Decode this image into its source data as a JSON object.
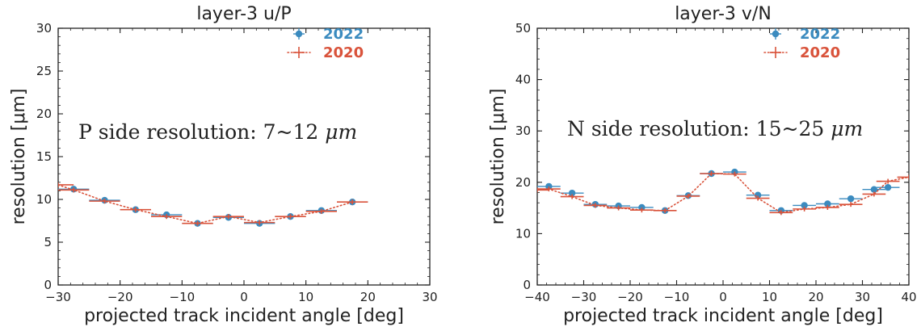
{
  "chart_data": [
    {
      "type": "scatter",
      "title": "layer-3 u/P",
      "xlabel": "projected track incident angle [deg]",
      "ylabel": "resolution [μm]",
      "xlim": [
        -30,
        30
      ],
      "ylim": [
        0,
        30
      ],
      "xticks": [
        -30,
        -20,
        -10,
        0,
        10,
        20,
        30
      ],
      "xtick_labels": [
        "−30",
        "−20",
        "−10",
        "0",
        "10",
        "20",
        "30"
      ],
      "yticks": [
        0,
        5,
        10,
        15,
        20,
        25,
        30
      ],
      "ytick_labels": [
        "0",
        "5",
        "10",
        "15",
        "20",
        "25",
        "30"
      ],
      "grid": false,
      "legend_position": "top-right",
      "annotation": {
        "text": "P side resolution: 7~12 ",
        "unit": "μm"
      },
      "series": [
        {
          "name": "2022",
          "style": "points-with-errorbars",
          "color": "#3b8bbf",
          "x": [
            -27.5,
            -22.5,
            -17.5,
            -12.5,
            -7.5,
            -2.5,
            2.5,
            7.5,
            12.5,
            17.5
          ],
          "y": [
            11.2,
            9.9,
            8.8,
            8.2,
            7.2,
            7.9,
            7.2,
            8.0,
            8.7,
            9.7
          ],
          "xerr": 2.5,
          "yerr": 0.2
        },
        {
          "name": "2020",
          "style": "dotted-line-with-errorbars",
          "color": "#d9533b",
          "x": [
            -30,
            -27.5,
            -22.5,
            -17.5,
            -12.5,
            -7.5,
            -2.5,
            2.5,
            7.5,
            12.5,
            17.5
          ],
          "y": [
            11.7,
            11.1,
            9.8,
            8.8,
            8.0,
            7.2,
            8.0,
            7.3,
            8.0,
            8.6,
            9.7
          ],
          "xerr": 2.5,
          "yerr": 0.15
        }
      ]
    },
    {
      "type": "scatter",
      "title": "layer-3 v/N",
      "xlabel": "projected track incident angle [deg]",
      "ylabel": "resolution [μm]",
      "xlim": [
        -40,
        40
      ],
      "ylim": [
        0,
        50
      ],
      "xticks": [
        -40,
        -30,
        -20,
        -10,
        0,
        10,
        20,
        30,
        40
      ],
      "xtick_labels": [
        "−40",
        "−30",
        "−20",
        "−10",
        "0",
        "10",
        "20",
        "30",
        "40"
      ],
      "yticks": [
        0,
        10,
        20,
        30,
        40,
        50
      ],
      "ytick_labels": [
        "0",
        "10",
        "20",
        "30",
        "40",
        "50"
      ],
      "grid": false,
      "legend_position": "top-right",
      "annotation": {
        "text": "N side resolution: 15~25 ",
        "unit": "μm"
      },
      "series": [
        {
          "name": "2022",
          "style": "points-with-errorbars",
          "color": "#3b8bbf",
          "x": [
            -37.5,
            -32.5,
            -27.5,
            -22.5,
            -17.5,
            -12.5,
            -7.5,
            -2.5,
            2.5,
            7.5,
            12.5,
            17.5,
            22.5,
            27.5,
            32.5,
            35.5
          ],
          "y": [
            19.2,
            17.9,
            15.7,
            15.4,
            15.1,
            14.5,
            17.4,
            21.7,
            22.0,
            17.5,
            14.5,
            15.5,
            15.8,
            16.8,
            18.6,
            19.0
          ],
          "xerr": 2.5,
          "yerr": 0.4
        },
        {
          "name": "2020",
          "style": "dotted-line-with-errorbars",
          "color": "#d9533b",
          "x": [
            -40,
            -37.5,
            -32.5,
            -27.5,
            -22.5,
            -17.5,
            -12.5,
            -7.5,
            -2.5,
            2.5,
            7.5,
            12.5,
            17.5,
            22.5,
            27.5,
            32.5,
            35.5,
            40
          ],
          "y": [
            18.5,
            18.7,
            17.2,
            15.5,
            15.0,
            14.6,
            14.5,
            17.3,
            21.7,
            21.6,
            16.9,
            14.1,
            14.8,
            15.1,
            15.7,
            17.7,
            20.2,
            21.0
          ],
          "xerr": 2.5,
          "yerr": 0.4
        }
      ]
    }
  ]
}
